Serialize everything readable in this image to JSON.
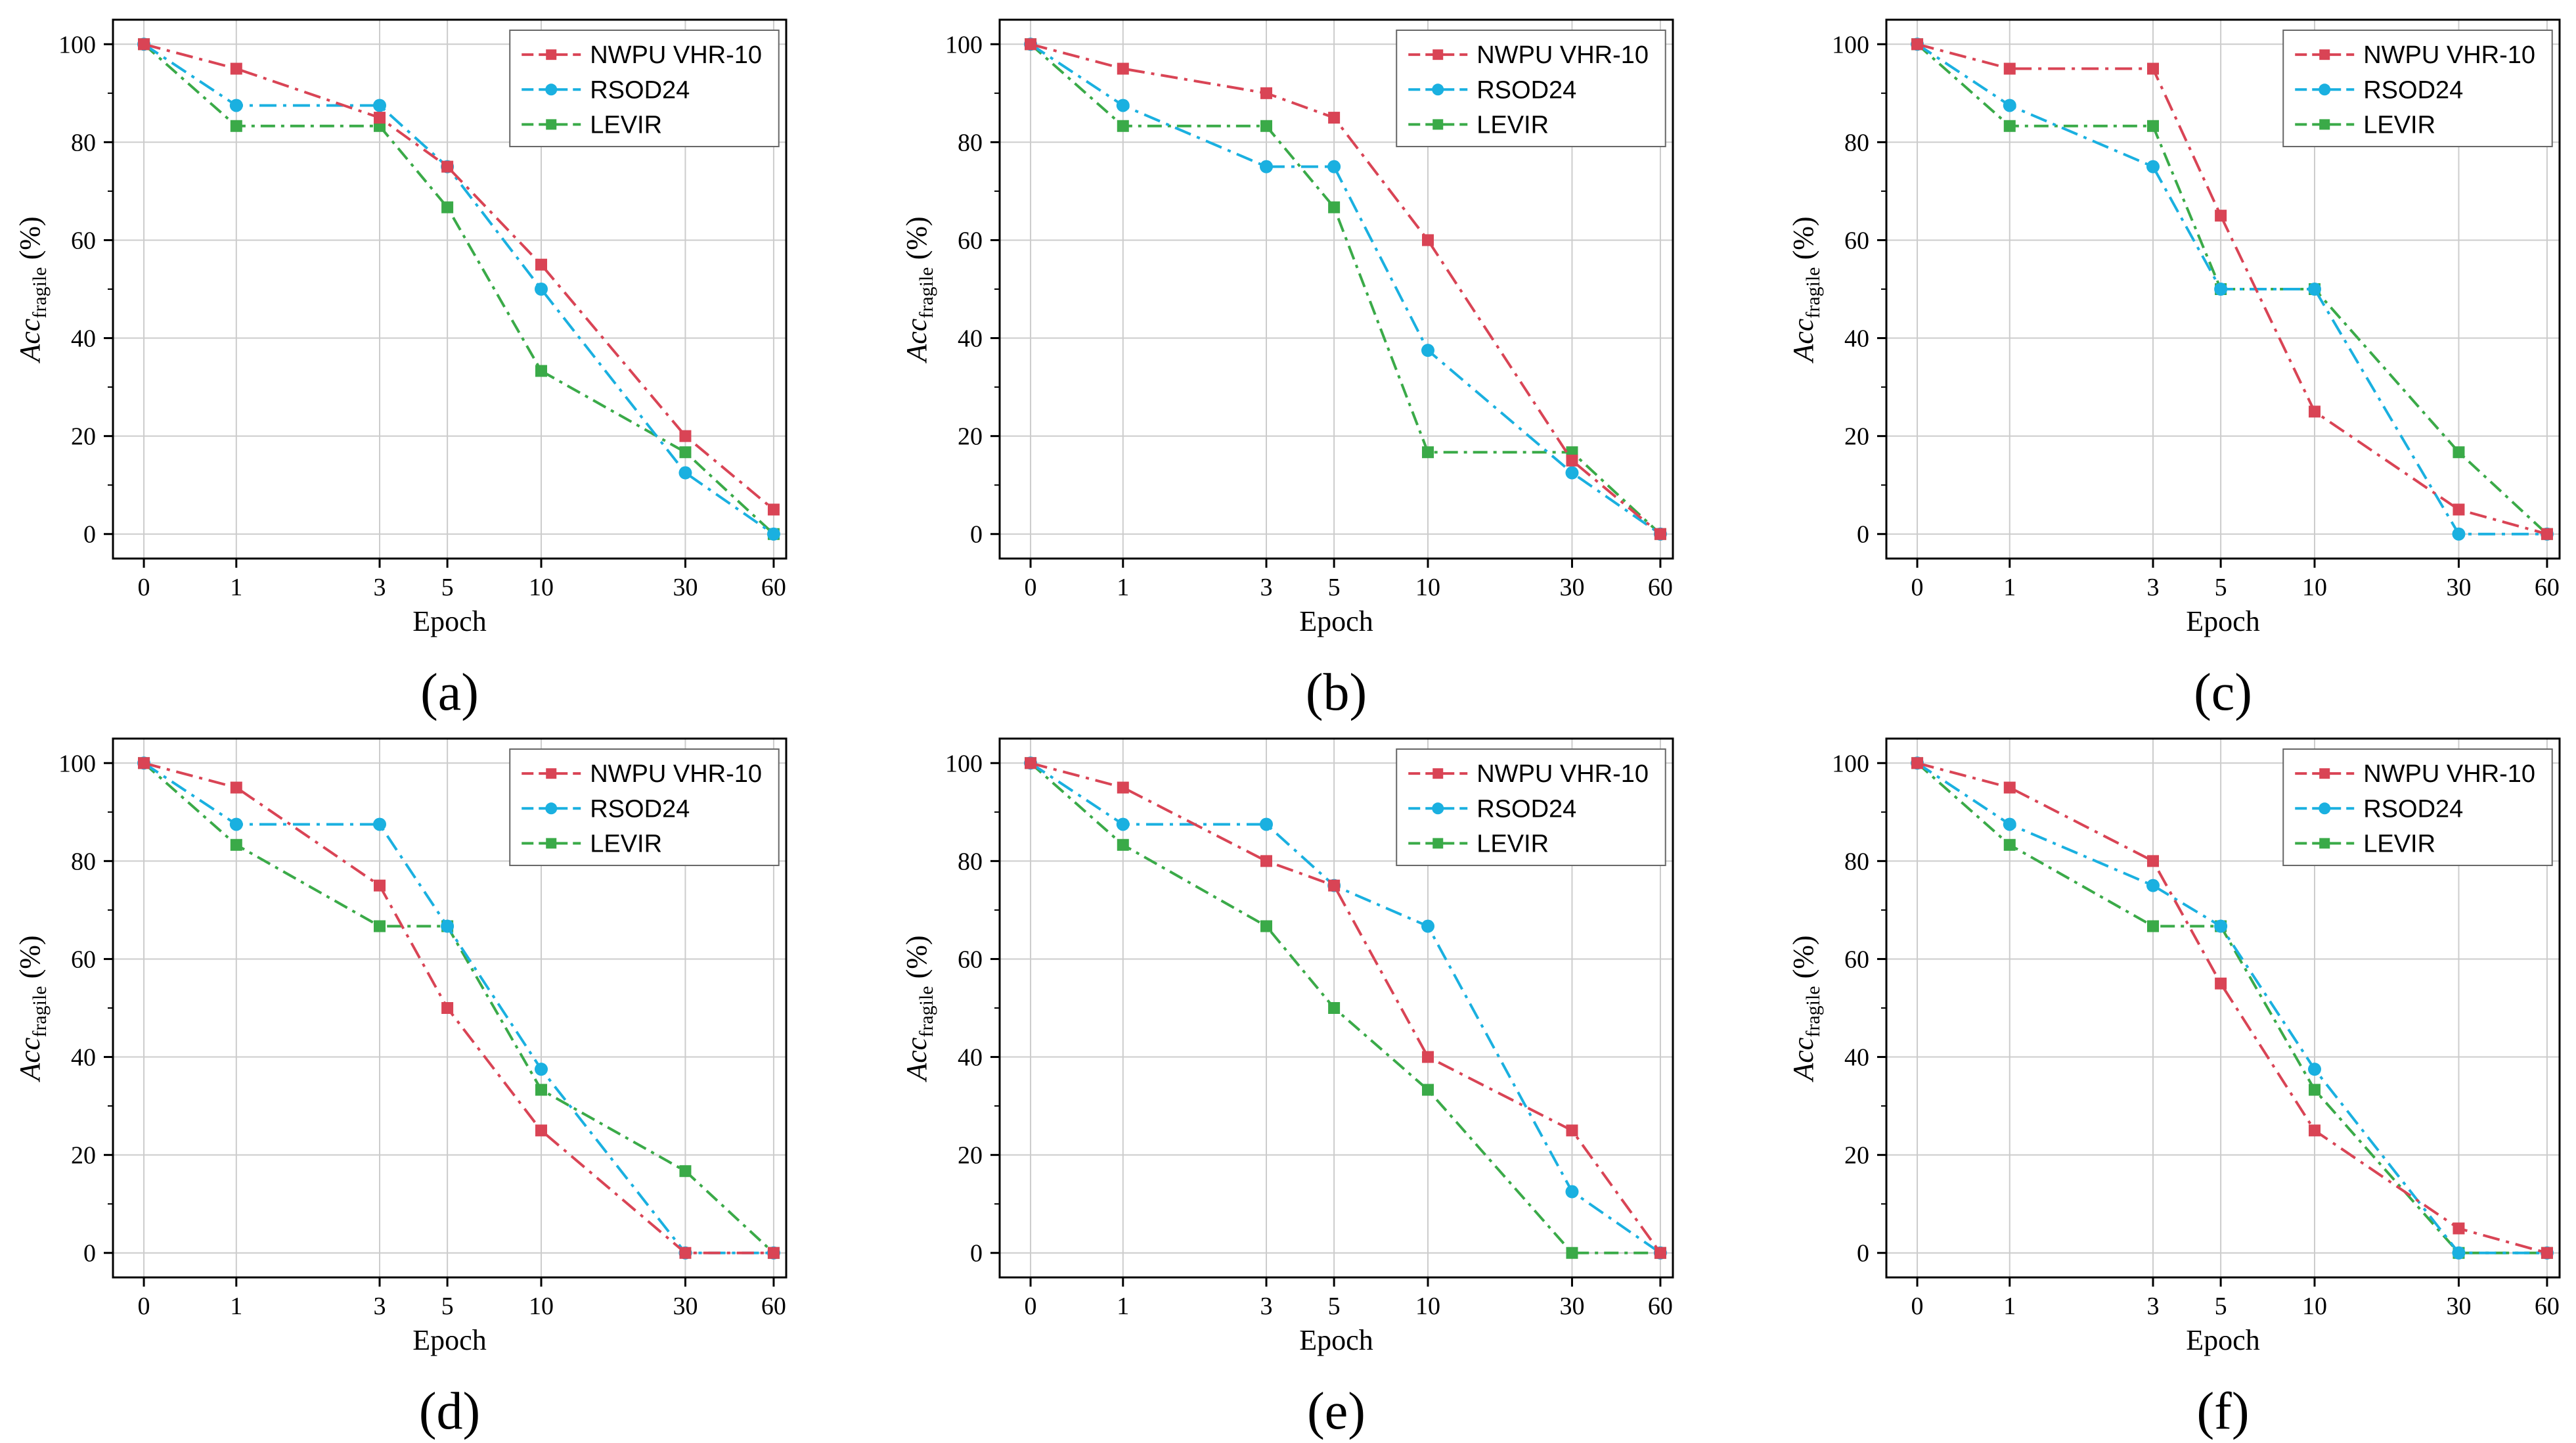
{
  "figure": {
    "y_axis_title_main": "Acc",
    "y_axis_title_sub": "fragile",
    "y_axis_title_unit": " (%)",
    "x_axis_title": "Epoch",
    "x_tick_labels": [
      "0",
      "1",
      "3",
      "5",
      "10",
      "30",
      "60"
    ],
    "y_tick_labels": [
      "0",
      "20",
      "40",
      "60",
      "80",
      "100"
    ],
    "colors": {
      "NWPU VHR-10": "#d94455",
      "RSOD24": "#1ab0e0",
      "LEVIR": "#3aaa48"
    }
  },
  "chart_data": [
    {
      "type": "line",
      "panel_label": "(a)",
      "xlabel": "Epoch",
      "ylabel": "Acc_fragile (%)",
      "x": [
        "0",
        "1",
        "3",
        "5",
        "10",
        "30",
        "60"
      ],
      "ylim": [
        -5,
        105
      ],
      "legend_position": "top-right",
      "grid": true,
      "series": [
        {
          "name": "NWPU VHR-10",
          "marker": "square",
          "values": [
            100,
            95,
            85,
            75,
            55,
            20,
            5
          ]
        },
        {
          "name": "RSOD24",
          "marker": "circle",
          "values": [
            100,
            87.5,
            87.5,
            75,
            50,
            12.5,
            0
          ]
        },
        {
          "name": "LEVIR",
          "marker": "square",
          "values": [
            100,
            83.3,
            83.3,
            66.7,
            33.3,
            16.7,
            0
          ]
        }
      ]
    },
    {
      "type": "line",
      "panel_label": "(b)",
      "xlabel": "Epoch",
      "ylabel": "Acc_fragile (%)",
      "x": [
        "0",
        "1",
        "3",
        "5",
        "10",
        "30",
        "60"
      ],
      "ylim": [
        -5,
        105
      ],
      "legend_position": "top-right",
      "grid": true,
      "series": [
        {
          "name": "NWPU VHR-10",
          "marker": "square",
          "values": [
            100,
            95,
            90,
            85,
            60,
            15,
            0
          ]
        },
        {
          "name": "RSOD24",
          "marker": "circle",
          "values": [
            100,
            87.5,
            75,
            75,
            37.5,
            12.5,
            0
          ]
        },
        {
          "name": "LEVIR",
          "marker": "square",
          "values": [
            100,
            83.3,
            83.3,
            66.7,
            16.7,
            16.7,
            0
          ]
        }
      ]
    },
    {
      "type": "line",
      "panel_label": "(c)",
      "xlabel": "Epoch",
      "ylabel": "Acc_fragile (%)",
      "x": [
        "0",
        "1",
        "3",
        "5",
        "10",
        "30",
        "60"
      ],
      "ylim": [
        -5,
        105
      ],
      "legend_position": "top-right",
      "grid": true,
      "series": [
        {
          "name": "NWPU VHR-10",
          "marker": "square",
          "values": [
            100,
            95,
            95,
            65,
            25,
            5,
            0
          ]
        },
        {
          "name": "RSOD24",
          "marker": "circle",
          "values": [
            100,
            87.5,
            75,
            50,
            50,
            0,
            0
          ]
        },
        {
          "name": "LEVIR",
          "marker": "square",
          "values": [
            100,
            83.3,
            83.3,
            50,
            50,
            16.7,
            0
          ]
        }
      ]
    },
    {
      "type": "line",
      "panel_label": "(d)",
      "xlabel": "Epoch",
      "ylabel": "Acc_fragile (%)",
      "x": [
        "0",
        "1",
        "3",
        "5",
        "10",
        "30",
        "60"
      ],
      "ylim": [
        -5,
        105
      ],
      "legend_position": "top-right",
      "grid": true,
      "series": [
        {
          "name": "NWPU VHR-10",
          "marker": "square",
          "values": [
            100,
            95,
            75,
            50,
            25,
            0,
            0
          ]
        },
        {
          "name": "RSOD24",
          "marker": "circle",
          "values": [
            100,
            87.5,
            87.5,
            66.7,
            37.5,
            0,
            0
          ]
        },
        {
          "name": "LEVIR",
          "marker": "square",
          "values": [
            100,
            83.3,
            66.7,
            66.7,
            33.3,
            16.7,
            0
          ]
        }
      ]
    },
    {
      "type": "line",
      "panel_label": "(e)",
      "xlabel": "Epoch",
      "ylabel": "Acc_fragile (%)",
      "x": [
        "0",
        "1",
        "3",
        "5",
        "10",
        "30",
        "60"
      ],
      "ylim": [
        -5,
        105
      ],
      "legend_position": "top-right",
      "grid": true,
      "series": [
        {
          "name": "NWPU VHR-10",
          "marker": "square",
          "values": [
            100,
            95,
            80,
            75,
            40,
            25,
            0
          ]
        },
        {
          "name": "RSOD24",
          "marker": "circle",
          "values": [
            100,
            87.5,
            87.5,
            75,
            66.7,
            12.5,
            0
          ]
        },
        {
          "name": "LEVIR",
          "marker": "square",
          "values": [
            100,
            83.3,
            66.7,
            50,
            33.3,
            0,
            0
          ]
        }
      ]
    },
    {
      "type": "line",
      "panel_label": "(f)",
      "xlabel": "Epoch",
      "ylabel": "Acc_fragile (%)",
      "x": [
        "0",
        "1",
        "3",
        "5",
        "10",
        "30",
        "60"
      ],
      "ylim": [
        -5,
        105
      ],
      "legend_position": "top-right",
      "grid": true,
      "series": [
        {
          "name": "NWPU VHR-10",
          "marker": "square",
          "values": [
            100,
            95,
            80,
            55,
            25,
            5,
            0
          ]
        },
        {
          "name": "RSOD24",
          "marker": "circle",
          "values": [
            100,
            87.5,
            75,
            66.7,
            37.5,
            0,
            0
          ]
        },
        {
          "name": "LEVIR",
          "marker": "square",
          "values": [
            100,
            83.3,
            66.7,
            66.7,
            33.3,
            0,
            0
          ]
        }
      ]
    }
  ]
}
